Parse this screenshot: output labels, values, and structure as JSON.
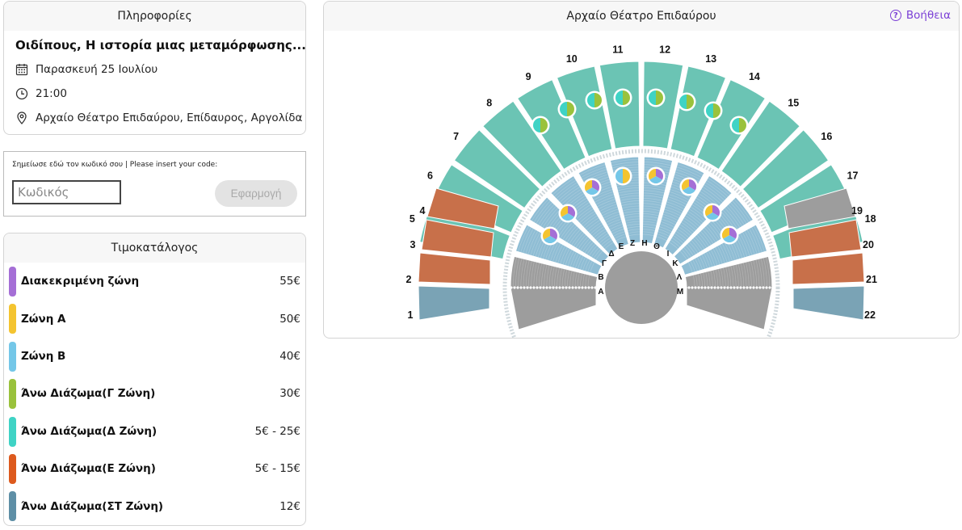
{
  "info": {
    "header": "Πληροφορίες",
    "event_title": "Οιδίπους, Η ιστορία μιας μεταμόρφωσης...",
    "date": "Παρασκευή 25 Ιουλίου",
    "time": "21:00",
    "venue": "Αρχαίο Θέατρο Επιδαύρου, Επίδαυρος, Αργολίδα"
  },
  "code": {
    "label": "Σημείωσε εδώ τον κωδικό σου | Please insert your code:",
    "placeholder": "Κωδικός",
    "apply_label": "Εφαρμογή"
  },
  "pricelist": {
    "header": "Τιμοκατάλογος",
    "items": [
      {
        "name": "Διακεκριμένη ζώνη",
        "price": "55€",
        "color": "#a56fd6"
      },
      {
        "name": "Ζώνη Α",
        "price": "50€",
        "color": "#f4c430"
      },
      {
        "name": "Ζώνη Β",
        "price": "40€",
        "color": "#74c7e8"
      },
      {
        "name": "Άνω Διάζωμα(Γ Ζώνη)",
        "price": "30€",
        "color": "#9ac23c"
      },
      {
        "name": "Άνω Διάζωμα(Δ Ζώνη)",
        "price": "5€ - 25€",
        "color": "#3fd3c5"
      },
      {
        "name": "Άνω Διάζωμα(Ε Ζώνη)",
        "price": "5€ - 15€",
        "color": "#dd5a1e"
      },
      {
        "name": "Άνω Διάζωμα(ΣΤ Ζώνη)",
        "price": "12€",
        "color": "#5e8fa6"
      }
    ]
  },
  "map": {
    "title": "Αρχαίο Θέατρο Επιδαύρου",
    "help_label": "Βοήθεια",
    "upper_sections": [
      "1",
      "2",
      "3",
      "4",
      "5",
      "6",
      "7",
      "8",
      "9",
      "10",
      "11",
      "12",
      "13",
      "14",
      "15",
      "16",
      "17",
      "18",
      "19",
      "20",
      "21",
      "22"
    ],
    "upper_colors": [
      "#7aa3b5",
      "#c8704a",
      "#c8704a",
      "#c8704a",
      "#6bc4b4",
      "#6bc4b4",
      "#6bc4b4",
      "#6bc4b4",
      "#6bc4b4",
      "#6bc4b4",
      "#6bc4b4",
      "#6bc4b4",
      "#6bc4b4",
      "#6bc4b4",
      "#6bc4b4",
      "#6bc4b4",
      "#6bc4b4",
      "#6bc4b4",
      "#9d9d9d",
      "#c8704a",
      "#c8704a",
      "#7aa3b5"
    ],
    "lower_sections": [
      "Α",
      "Β",
      "Γ",
      "Δ",
      "Ε",
      "Ζ",
      "Η",
      "Θ",
      "Ι",
      "Κ",
      "Λ",
      "Μ"
    ],
    "lower_colors": [
      "#9d9d9d",
      "#8fbdd4",
      "#8fbdd4",
      "#8fbdd4",
      "#8fbdd4",
      "#8fbdd4",
      "#8fbdd4",
      "#8fbdd4",
      "#8fbdd4",
      "#8fbdd4",
      "#8fbdd4",
      "#9d9d9d"
    ],
    "marker_colors": {
      "green": "#9ac23c",
      "teal": "#3fd3c5",
      "yellow": "#f4c430",
      "blue": "#74c7e8",
      "purple": "#a56fd6"
    }
  }
}
